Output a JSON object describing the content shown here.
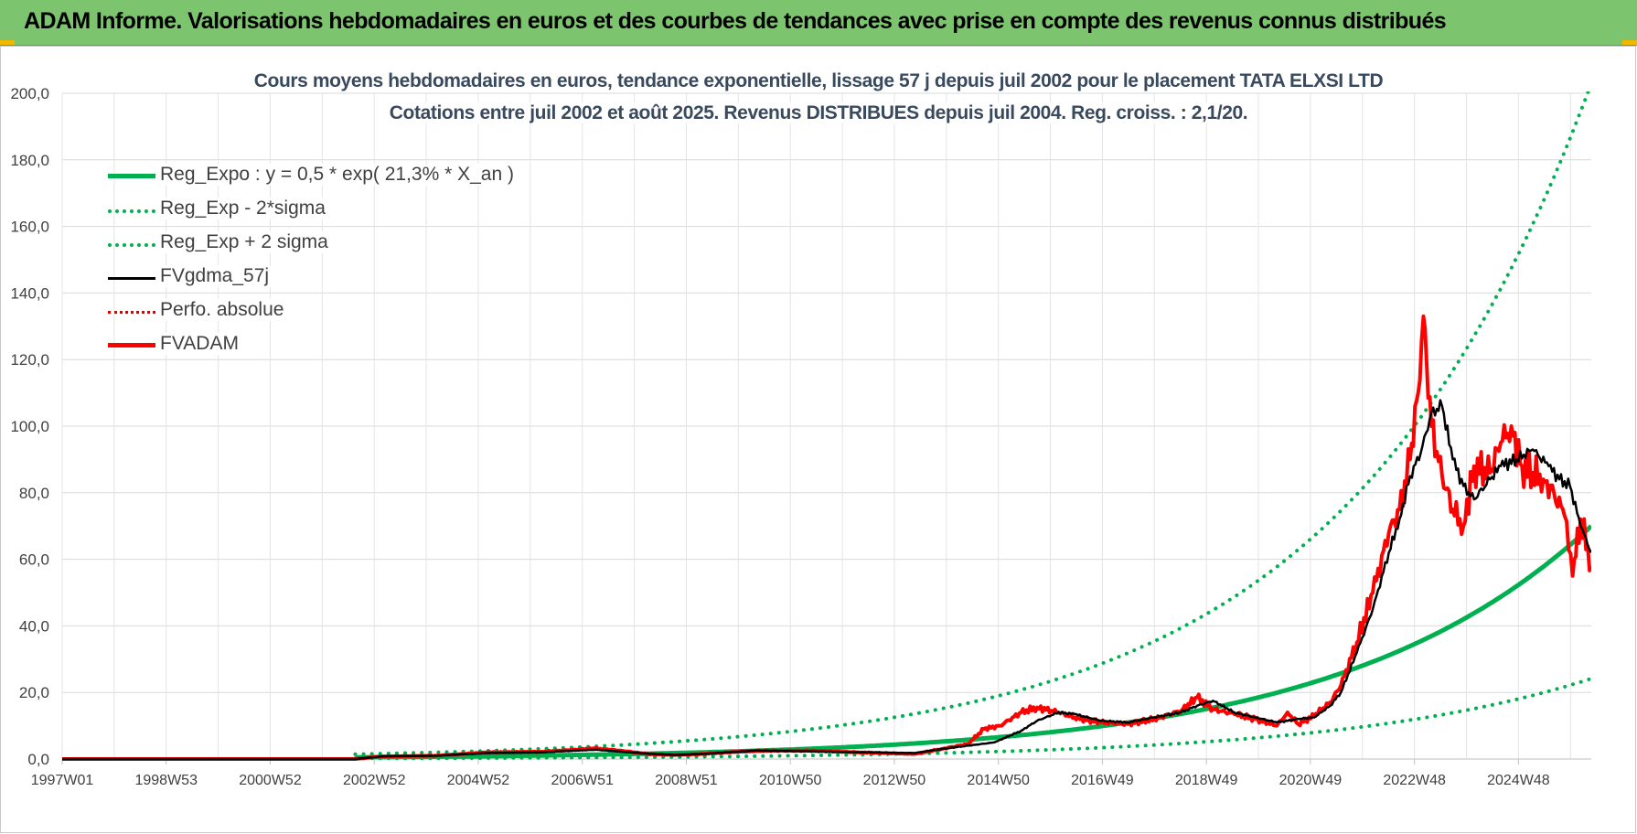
{
  "banner": {
    "title": "ADAM Informe. Valorisations hebdomadaires en euros et des courbes de tendances avec prise en compte des revenus connus distribués",
    "bg_color": "#7cc46e",
    "corner_color": "#f2b800"
  },
  "chart_data": {
    "type": "line",
    "title": "Cours moyens hebdomadaires en euros, tendance exponentielle, lissage 57 j depuis juil 2002 pour le placement TATA ELXSI LTD",
    "subtitle": "Cotations entre juil 2002 et août 2025. Revenus DISTRIBUES depuis juil 2004. Reg. croiss. : 2,1/20.",
    "xlabel": "",
    "ylabel": "",
    "x_ticks": [
      "1997W01",
      "1998W53",
      "2000W52",
      "2002W52",
      "2004W52",
      "2006W51",
      "2008W51",
      "2010W50",
      "2012W50",
      "2014W50",
      "2016W49",
      "2018W49",
      "2020W49",
      "2022W48",
      "2024W48"
    ],
    "y_ticks": [
      "0,0",
      "20,0",
      "40,0",
      "60,0",
      "80,0",
      "100,0",
      "120,0",
      "140,0",
      "160,0",
      "180,0",
      "200,0"
    ],
    "ylim": [
      0,
      200
    ],
    "xlim": [
      1997.0,
      2025.7
    ],
    "grid": true,
    "legend_position": "top-left",
    "series": [
      {
        "name": "Reg_Expo : y = 0,5 * exp( 21,3% *  X_an )",
        "color": "#00b050",
        "style": "solid",
        "kind": "expo",
        "factor": 1.0
      },
      {
        "name": "Reg_Exp - 2*sigma",
        "color": "#00b050",
        "style": "dotted",
        "kind": "expo",
        "factor": 0.345
      },
      {
        "name": "Reg_Exp + 2 sigma",
        "color": "#00b050",
        "style": "dotted",
        "kind": "expo",
        "factor": 2.9
      },
      {
        "name": "FVgdma_57j",
        "color": "#000000",
        "style": "solid",
        "kind": "data",
        "x": [
          1997.0,
          2002.5,
          2003.0,
          2004.0,
          2005.0,
          2006.0,
          2007.0,
          2007.5,
          2008.0,
          2008.5,
          2009.0,
          2010.0,
          2011.0,
          2012.0,
          2013.0,
          2013.5,
          2014.0,
          2014.5,
          2015.0,
          2015.3,
          2015.7,
          2016.0,
          2016.5,
          2017.0,
          2017.5,
          2018.0,
          2018.3,
          2018.6,
          2019.0,
          2019.4,
          2019.8,
          2020.2,
          2020.5,
          2020.8,
          2021.0,
          2021.3,
          2021.6,
          2021.9,
          2022.1,
          2022.3,
          2022.5,
          2022.7,
          2022.9,
          2023.1,
          2023.3,
          2023.5,
          2023.8,
          2024.0,
          2024.3,
          2024.6,
          2024.9,
          2025.1,
          2025.3,
          2025.5,
          2025.7
        ],
        "y": [
          0.0,
          0.0,
          0.8,
          1.0,
          1.8,
          2.0,
          2.8,
          2.2,
          1.6,
          1.2,
          1.5,
          2.5,
          2.3,
          2.0,
          1.8,
          3.0,
          4.0,
          5.0,
          8.5,
          11.5,
          14.0,
          13.5,
          11.5,
          11.0,
          12.5,
          14.0,
          16.0,
          17.5,
          14.0,
          12.5,
          11.0,
          12.0,
          12.5,
          16.0,
          20.0,
          32.0,
          45.0,
          62.0,
          72.0,
          85.0,
          92.0,
          104.0,
          106.0,
          90.0,
          82.0,
          78.0,
          84.0,
          88.0,
          90.0,
          93.0,
          88.0,
          84.0,
          82.0,
          70.0,
          62.0
        ]
      },
      {
        "name": "Perfo. absolue",
        "color": "#e00000",
        "style": "dotted",
        "kind": "data",
        "x": [],
        "y": []
      },
      {
        "name": "FVADAM",
        "color": "#ff0000",
        "style": "solid",
        "kind": "data",
        "x": [
          1997.0,
          2002.5,
          2003.0,
          2004.0,
          2005.0,
          2006.0,
          2007.0,
          2007.5,
          2008.0,
          2008.5,
          2009.0,
          2010.0,
          2011.0,
          2012.0,
          2013.0,
          2013.5,
          2014.0,
          2014.3,
          2014.6,
          2015.0,
          2015.3,
          2015.7,
          2016.0,
          2016.5,
          2017.0,
          2017.5,
          2018.0,
          2018.3,
          2018.6,
          2019.0,
          2019.4,
          2019.8,
          2020.0,
          2020.2,
          2020.5,
          2020.8,
          2021.0,
          2021.3,
          2021.6,
          2021.9,
          2022.1,
          2022.3,
          2022.45,
          2022.55,
          2022.7,
          2022.9,
          2023.1,
          2023.3,
          2023.5,
          2023.8,
          2024.0,
          2024.2,
          2024.4,
          2024.6,
          2024.8,
          2025.0,
          2025.2,
          2025.35,
          2025.5,
          2025.7
        ],
        "y": [
          0.0,
          0.0,
          0.8,
          1.0,
          2.0,
          2.2,
          3.2,
          2.5,
          1.5,
          1.2,
          1.5,
          2.5,
          2.5,
          2.0,
          1.5,
          3.0,
          4.5,
          9.0,
          10.0,
          14.0,
          15.5,
          14.0,
          12.5,
          11.0,
          10.5,
          12.0,
          14.5,
          18.5,
          15.0,
          13.5,
          12.0,
          10.0,
          14.0,
          10.5,
          13.0,
          17.0,
          22.0,
          35.0,
          50.0,
          68.0,
          75.0,
          90.0,
          110.0,
          133.0,
          100.0,
          85.0,
          75.0,
          70.0,
          88.0,
          86.0,
          95.0,
          100.0,
          88.0,
          86.0,
          84.0,
          80.0,
          73.0,
          55.0,
          72.0,
          58.0
        ]
      }
    ]
  }
}
